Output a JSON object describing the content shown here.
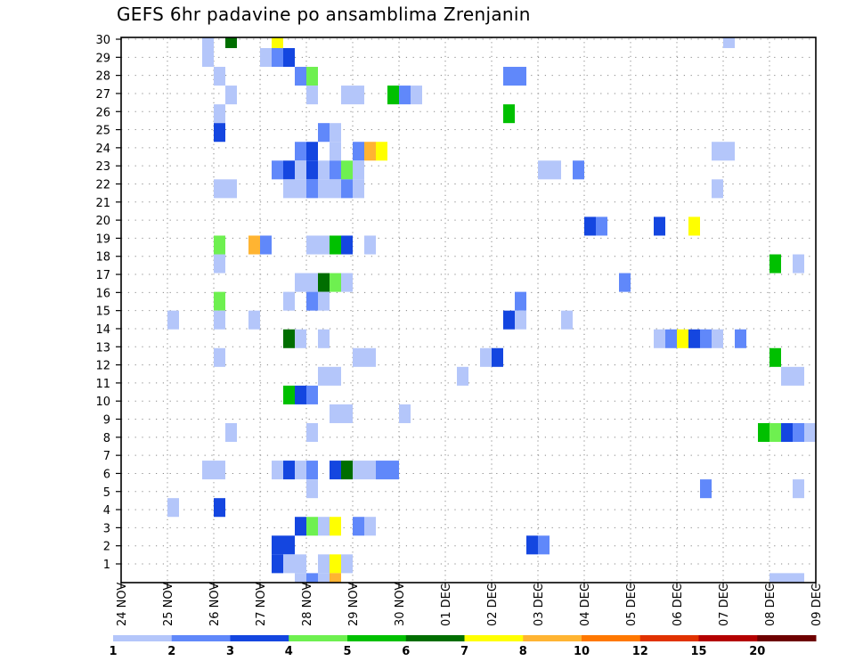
{
  "chart_data": {
    "type": "heatmap",
    "title": "GEFS 6hr padavine po ansamblima Zrenjanin",
    "xlabel": "",
    "ylabel": "",
    "x_tick_labels": [
      "24 NOV",
      "25 NOV",
      "26 NOV",
      "27 NOV",
      "28 NOV",
      "29 NOV",
      "30 NOV",
      "01 DEC",
      "02 DEC",
      "03 DEC",
      "04 DEC",
      "05 DEC",
      "06 DEC",
      "07 DEC",
      "08 DEC",
      "09 DEC"
    ],
    "x_steps_per_day": 4,
    "x_columns": 60,
    "y_tick_labels": [
      "1",
      "2",
      "3",
      "4",
      "5",
      "6",
      "7",
      "8",
      "9",
      "10",
      "11",
      "12",
      "13",
      "14",
      "15",
      "16",
      "17",
      "18",
      "19",
      "20",
      "21",
      "22",
      "23",
      "24",
      "25",
      "26",
      "27",
      "28",
      "29",
      "30"
    ],
    "grid": true,
    "legend": {
      "placement": "bottom",
      "boundaries": [
        "1",
        "2",
        "3",
        "4",
        "5",
        "6",
        "7",
        "8",
        "10",
        "12",
        "15",
        "20"
      ],
      "colors": [
        "#b4c6fa",
        "#6088fa",
        "#1446e0",
        "#6ef050",
        "#00c000",
        "#006e00",
        "#ffff00",
        "#ffb432",
        "#ff7800",
        "#e13200",
        "#b40000",
        "#6e0000"
      ]
    },
    "cells_format": "[member, 6hr step index from 24 NOV 00UTC, color class index]",
    "cells": [
      [
        30,
        7,
        0
      ],
      [
        30,
        9,
        5
      ],
      [
        30,
        13,
        6
      ],
      [
        30,
        52,
        0
      ],
      [
        29,
        7,
        0
      ],
      [
        29,
        12,
        0
      ],
      [
        29,
        13,
        1
      ],
      [
        29,
        14,
        2
      ],
      [
        28,
        8,
        0
      ],
      [
        28,
        15,
        1
      ],
      [
        28,
        16,
        3
      ],
      [
        28,
        33,
        1
      ],
      [
        28,
        34,
        1
      ],
      [
        27,
        9,
        0
      ],
      [
        27,
        16,
        0
      ],
      [
        27,
        19,
        0
      ],
      [
        27,
        20,
        0
      ],
      [
        27,
        23,
        4
      ],
      [
        27,
        24,
        1
      ],
      [
        27,
        25,
        0
      ],
      [
        26,
        8,
        0
      ],
      [
        26,
        33,
        4
      ],
      [
        25,
        8,
        2
      ],
      [
        25,
        17,
        1
      ],
      [
        25,
        18,
        0
      ],
      [
        24,
        15,
        1
      ],
      [
        24,
        16,
        2
      ],
      [
        24,
        18,
        0
      ],
      [
        24,
        20,
        1
      ],
      [
        24,
        21,
        7
      ],
      [
        24,
        22,
        6
      ],
      [
        24,
        51,
        0
      ],
      [
        24,
        52,
        0
      ],
      [
        23,
        13,
        1
      ],
      [
        23,
        14,
        2
      ],
      [
        23,
        15,
        0
      ],
      [
        23,
        16,
        2
      ],
      [
        23,
        17,
        0
      ],
      [
        23,
        18,
        1
      ],
      [
        23,
        19,
        3
      ],
      [
        23,
        20,
        0
      ],
      [
        23,
        36,
        0
      ],
      [
        23,
        37,
        0
      ],
      [
        23,
        39,
        1
      ],
      [
        22,
        8,
        0
      ],
      [
        22,
        9,
        0
      ],
      [
        22,
        14,
        0
      ],
      [
        22,
        15,
        0
      ],
      [
        22,
        16,
        1
      ],
      [
        22,
        17,
        0
      ],
      [
        22,
        18,
        0
      ],
      [
        22,
        19,
        1
      ],
      [
        22,
        20,
        0
      ],
      [
        22,
        51,
        0
      ],
      [
        20,
        40,
        2
      ],
      [
        20,
        41,
        1
      ],
      [
        20,
        46,
        2
      ],
      [
        20,
        49,
        6
      ],
      [
        19,
        8,
        3
      ],
      [
        19,
        11,
        7
      ],
      [
        19,
        12,
        1
      ],
      [
        19,
        16,
        0
      ],
      [
        19,
        17,
        0
      ],
      [
        19,
        18,
        4
      ],
      [
        19,
        19,
        2
      ],
      [
        19,
        21,
        0
      ],
      [
        18,
        8,
        0
      ],
      [
        18,
        56,
        4
      ],
      [
        18,
        58,
        0
      ],
      [
        17,
        15,
        0
      ],
      [
        17,
        16,
        0
      ],
      [
        17,
        17,
        5
      ],
      [
        17,
        18,
        3
      ],
      [
        17,
        19,
        0
      ],
      [
        17,
        43,
        1
      ],
      [
        16,
        8,
        3
      ],
      [
        16,
        14,
        0
      ],
      [
        16,
        16,
        1
      ],
      [
        16,
        17,
        0
      ],
      [
        16,
        34,
        1
      ],
      [
        15,
        4,
        0
      ],
      [
        15,
        8,
        0
      ],
      [
        15,
        11,
        0
      ],
      [
        15,
        33,
        2
      ],
      [
        15,
        34,
        0
      ],
      [
        15,
        38,
        0
      ],
      [
        14,
        14,
        5
      ],
      [
        14,
        15,
        0
      ],
      [
        14,
        17,
        0
      ],
      [
        14,
        46,
        0
      ],
      [
        14,
        47,
        1
      ],
      [
        14,
        48,
        6
      ],
      [
        14,
        49,
        2
      ],
      [
        14,
        50,
        1
      ],
      [
        14,
        51,
        0
      ],
      [
        14,
        53,
        1
      ],
      [
        13,
        8,
        0
      ],
      [
        13,
        20,
        0
      ],
      [
        13,
        21,
        0
      ],
      [
        13,
        31,
        0
      ],
      [
        13,
        32,
        2
      ],
      [
        13,
        56,
        4
      ],
      [
        12,
        17,
        0
      ],
      [
        12,
        18,
        0
      ],
      [
        12,
        29,
        0
      ],
      [
        12,
        57,
        0
      ],
      [
        12,
        58,
        0
      ],
      [
        11,
        14,
        4
      ],
      [
        11,
        15,
        2
      ],
      [
        11,
        16,
        1
      ],
      [
        10,
        18,
        0
      ],
      [
        10,
        19,
        0
      ],
      [
        10,
        24,
        0
      ],
      [
        9,
        9,
        0
      ],
      [
        9,
        16,
        0
      ],
      [
        9,
        55,
        4
      ],
      [
        9,
        56,
        3
      ],
      [
        9,
        57,
        2
      ],
      [
        9,
        58,
        1
      ],
      [
        9,
        59,
        0
      ],
      [
        7,
        7,
        0
      ],
      [
        7,
        8,
        0
      ],
      [
        7,
        13,
        0
      ],
      [
        7,
        14,
        2
      ],
      [
        7,
        15,
        0
      ],
      [
        7,
        16,
        1
      ],
      [
        7,
        18,
        2
      ],
      [
        7,
        19,
        5
      ],
      [
        7,
        20,
        0
      ],
      [
        7,
        21,
        0
      ],
      [
        7,
        22,
        1
      ],
      [
        7,
        23,
        1
      ],
      [
        6,
        16,
        0
      ],
      [
        6,
        50,
        1
      ],
      [
        6,
        58,
        0
      ],
      [
        5,
        4,
        0
      ],
      [
        5,
        8,
        2
      ],
      [
        4,
        15,
        2
      ],
      [
        4,
        16,
        3
      ],
      [
        4,
        17,
        0
      ],
      [
        4,
        18,
        6
      ],
      [
        4,
        20,
        1
      ],
      [
        4,
        21,
        0
      ],
      [
        3,
        13,
        2
      ],
      [
        3,
        14,
        2
      ],
      [
        3,
        35,
        2
      ],
      [
        3,
        36,
        1
      ],
      [
        2,
        13,
        2
      ],
      [
        2,
        14,
        0
      ],
      [
        2,
        15,
        0
      ],
      [
        2,
        17,
        0
      ],
      [
        2,
        18,
        6
      ],
      [
        2,
        19,
        0
      ],
      [
        1,
        15,
        0
      ],
      [
        1,
        16,
        1
      ],
      [
        1,
        17,
        0
      ],
      [
        1,
        18,
        7
      ],
      [
        1,
        56,
        0
      ],
      [
        1,
        57,
        0
      ],
      [
        1,
        58,
        0
      ]
    ]
  }
}
